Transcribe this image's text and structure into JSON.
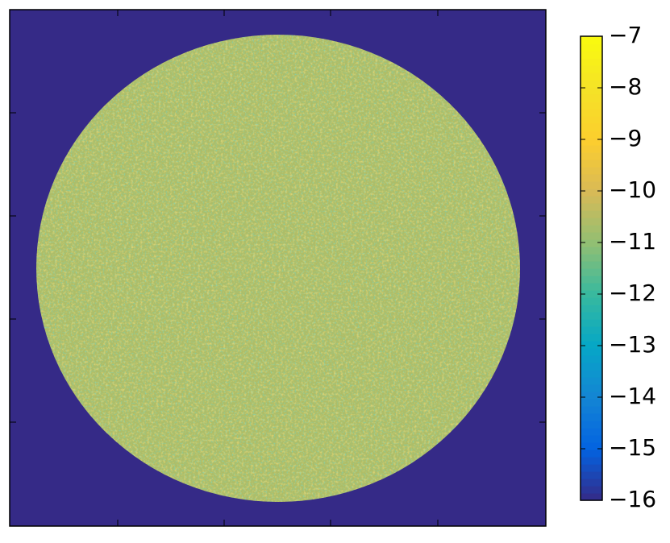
{
  "chart_data": {
    "type": "heatmap",
    "regions": [
      {
        "shape": "background",
        "value": -16
      },
      {
        "shape": "disk",
        "value": -10.6
      }
    ],
    "colormap": [
      "#352a87",
      "#0363e1",
      "#1485d4",
      "#06a7c6",
      "#38b99e",
      "#92bf73",
      "#d9ba56",
      "#fcce2e",
      "#f5e327",
      "#f9fb0e"
    ],
    "clim": [
      -16,
      -7
    ],
    "colorbar_ticks": [
      {
        "value": -7,
        "label": "−7"
      },
      {
        "value": -8,
        "label": "−8"
      },
      {
        "value": -9,
        "label": "−9"
      },
      {
        "value": -10,
        "label": "−10"
      },
      {
        "value": -11,
        "label": "−11"
      },
      {
        "value": -12,
        "label": "−12"
      },
      {
        "value": -13,
        "label": "−13"
      },
      {
        "value": -14,
        "label": "−14"
      },
      {
        "value": -15,
        "label": "−15"
      },
      {
        "value": -16,
        "label": "−16"
      }
    ]
  }
}
